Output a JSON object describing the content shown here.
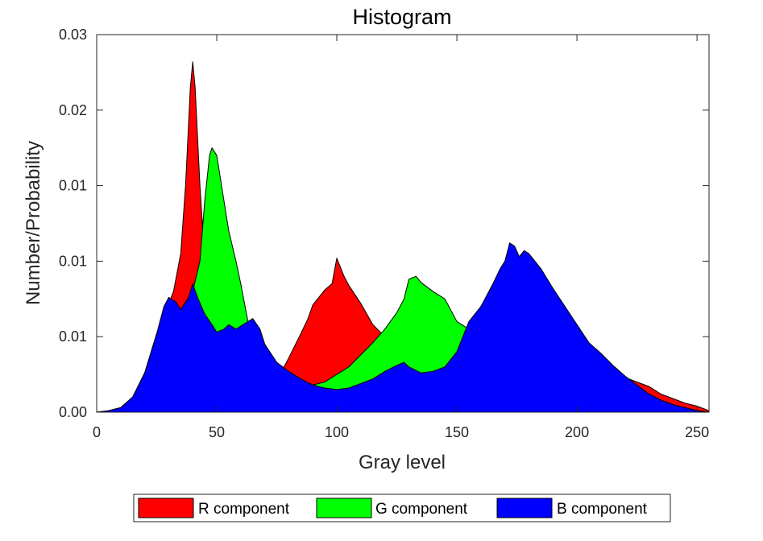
{
  "chart_data": {
    "type": "area",
    "title": "Histogram",
    "xlabel": "Gray level",
    "ylabel": "Number/Probability",
    "xlim": [
      0,
      255
    ],
    "ylim": [
      0,
      0.025
    ],
    "x_ticks": [
      0,
      50,
      100,
      150,
      200,
      250
    ],
    "x_tick_labels": [
      "0",
      "50",
      "100",
      "150",
      "200",
      "250"
    ],
    "y_ticks": [
      0,
      0.005,
      0.01,
      0.015,
      0.02,
      0.025
    ],
    "y_tick_labels": [
      "0.00",
      "0.01",
      "0.01",
      "0.01",
      "0.02",
      "0.03"
    ],
    "grid": false,
    "legend_position": "bottom-center",
    "series": [
      {
        "name": "R component",
        "color": "#ff0000",
        "x": [
          0,
          5,
          10,
          15,
          20,
          25,
          28,
          30,
          32,
          35,
          37,
          39,
          40,
          41,
          43,
          45,
          48,
          50,
          55,
          60,
          65,
          70,
          75,
          78,
          80,
          85,
          88,
          90,
          93,
          95,
          98,
          100,
          103,
          105,
          110,
          115,
          120,
          125,
          130,
          135,
          140,
          145,
          150,
          155,
          160,
          165,
          170,
          172,
          175,
          180,
          185,
          190,
          195,
          200,
          205,
          210,
          215,
          220,
          225,
          230,
          235,
          240,
          245,
          250,
          255
        ],
        "y": [
          0.0,
          0.0001,
          0.0003,
          0.001,
          0.0026,
          0.0052,
          0.0063,
          0.0072,
          0.008,
          0.0105,
          0.015,
          0.0215,
          0.0232,
          0.0215,
          0.015,
          0.01,
          0.008,
          0.0073,
          0.0058,
          0.005,
          0.0043,
          0.0035,
          0.0028,
          0.003,
          0.0036,
          0.0052,
          0.0062,
          0.0071,
          0.0077,
          0.0081,
          0.0085,
          0.0102,
          0.009,
          0.0084,
          0.0072,
          0.0058,
          0.005,
          0.0045,
          0.0041,
          0.0035,
          0.0032,
          0.0031,
          0.0032,
          0.005,
          0.006,
          0.0075,
          0.0095,
          0.0112,
          0.0104,
          0.0095,
          0.0082,
          0.007,
          0.0058,
          0.0046,
          0.0039,
          0.0031,
          0.0026,
          0.0023,
          0.002,
          0.0017,
          0.0012,
          0.0009,
          0.0006,
          0.0004,
          0.0001
        ]
      },
      {
        "name": "G component",
        "color": "#00ff00",
        "x": [
          0,
          5,
          10,
          15,
          20,
          25,
          30,
          35,
          40,
          43,
          45,
          47,
          48,
          50,
          52,
          55,
          58,
          60,
          63,
          65,
          70,
          75,
          80,
          85,
          90,
          95,
          100,
          105,
          110,
          115,
          120,
          125,
          128,
          130,
          133,
          135,
          140,
          145,
          150,
          155,
          160,
          165,
          170,
          172,
          175,
          180,
          185,
          190,
          195,
          200,
          205,
          210,
          215,
          220,
          225,
          230,
          235,
          240,
          245,
          250,
          255
        ],
        "y": [
          0.0,
          0.0001,
          0.0003,
          0.001,
          0.0026,
          0.0052,
          0.007,
          0.0068,
          0.008,
          0.01,
          0.014,
          0.017,
          0.0175,
          0.017,
          0.015,
          0.012,
          0.01,
          0.0085,
          0.006,
          0.005,
          0.0042,
          0.0033,
          0.0025,
          0.002,
          0.0018,
          0.002,
          0.0025,
          0.003,
          0.0038,
          0.0046,
          0.0055,
          0.0066,
          0.0075,
          0.0088,
          0.009,
          0.0086,
          0.008,
          0.0075,
          0.006,
          0.0055,
          0.006,
          0.0075,
          0.0095,
          0.0112,
          0.0104,
          0.0095,
          0.0082,
          0.007,
          0.0058,
          0.0046,
          0.0039,
          0.0031,
          0.0026,
          0.0022,
          0.0018,
          0.0012,
          0.0008,
          0.0005,
          0.0003,
          0.0001,
          0.0
        ]
      },
      {
        "name": "B component",
        "color": "#0000ff",
        "x": [
          0,
          5,
          10,
          15,
          20,
          25,
          28,
          30,
          33,
          35,
          38,
          40,
          42,
          45,
          48,
          50,
          53,
          55,
          58,
          60,
          63,
          65,
          68,
          70,
          75,
          80,
          85,
          90,
          95,
          100,
          105,
          110,
          115,
          120,
          125,
          128,
          130,
          135,
          140,
          145,
          150,
          155,
          160,
          165,
          168,
          170,
          172,
          174,
          176,
          178,
          180,
          185,
          190,
          195,
          200,
          205,
          210,
          215,
          220,
          225,
          230,
          235,
          240,
          245,
          250,
          255
        ],
        "y": [
          0.0,
          0.0001,
          0.0003,
          0.001,
          0.0026,
          0.0052,
          0.007,
          0.0076,
          0.0073,
          0.0068,
          0.0075,
          0.0085,
          0.0076,
          0.0065,
          0.0058,
          0.0053,
          0.0055,
          0.0058,
          0.0055,
          0.0057,
          0.006,
          0.0062,
          0.0055,
          0.0045,
          0.0033,
          0.0027,
          0.0022,
          0.0018,
          0.0016,
          0.0015,
          0.0016,
          0.0019,
          0.0022,
          0.0027,
          0.0031,
          0.0033,
          0.003,
          0.0026,
          0.0027,
          0.003,
          0.004,
          0.006,
          0.007,
          0.0085,
          0.0095,
          0.01,
          0.0112,
          0.011,
          0.0103,
          0.0107,
          0.0105,
          0.0095,
          0.0082,
          0.007,
          0.0058,
          0.0046,
          0.0039,
          0.0031,
          0.0024,
          0.0018,
          0.0012,
          0.0008,
          0.0005,
          0.0003,
          0.0001,
          0.0
        ]
      }
    ]
  }
}
